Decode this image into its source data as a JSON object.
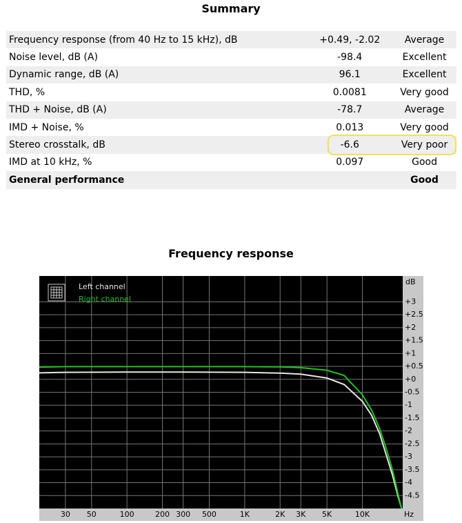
{
  "summary": {
    "title": "Summary",
    "highlight_row": 6,
    "rows": [
      [
        "Frequency response (from 40 Hz to 15 kHz), dB",
        "+0.49, -2.02",
        "Average"
      ],
      [
        "Noise level, dB (A)",
        "-98.4",
        "Excellent"
      ],
      [
        "Dynamic range, dB (A)",
        "96.1",
        "Excellent"
      ],
      [
        "THD, %",
        "0.0081",
        "Very good"
      ],
      [
        "THD + Noise, dB (A)",
        "-78.7",
        "Average"
      ],
      [
        "IMD + Noise, %",
        "0.013",
        "Very good"
      ],
      [
        "Stereo crosstalk, dB",
        "-6.6",
        "Very poor"
      ],
      [
        "IMD at 10 kHz, %",
        "0.097",
        "Good"
      ],
      [
        "General performance",
        "",
        "Good"
      ]
    ]
  },
  "chart_data": {
    "type": "line",
    "title": "Frequency response",
    "y_label": "dB",
    "x_label": "Hz",
    "log_x": true,
    "grid": true,
    "x": [
      18,
      30,
      100,
      300,
      1000,
      2000,
      3000,
      5000,
      7000,
      10000,
      12000,
      14000,
      16000,
      18000,
      20000,
      21500
    ],
    "series": [
      {
        "name": "Left channel",
        "color": "#e6e6e6",
        "values": [
          0.25,
          0.27,
          0.28,
          0.28,
          0.27,
          0.24,
          0.2,
          0.05,
          -0.2,
          -0.85,
          -1.4,
          -2.1,
          -2.95,
          -3.7,
          -4.5,
          -5.0
        ]
      },
      {
        "name": "Right channel",
        "color": "#1fc21f",
        "values": [
          0.47,
          0.49,
          0.49,
          0.49,
          0.49,
          0.48,
          0.45,
          0.35,
          0.15,
          -0.6,
          -1.2,
          -1.9,
          -2.7,
          -3.5,
          -4.4,
          -5.0
        ]
      }
    ],
    "xlim": [
      18,
      22000
    ],
    "xticks": [
      30,
      50,
      100,
      200,
      300,
      500,
      {
        "value": 1000,
        "label": "1K"
      },
      {
        "value": 2000,
        "label": "2K"
      },
      {
        "value": 3000,
        "label": "3K"
      },
      {
        "value": 5000,
        "label": "5K"
      },
      {
        "value": 10000,
        "label": "10K"
      }
    ],
    "ylim": [
      -5,
      4
    ],
    "yticks": [
      {
        "value": 3,
        "label": "+3"
      },
      {
        "value": 2.5,
        "label": "+2.5"
      },
      {
        "value": 2,
        "label": "+2"
      },
      {
        "value": 1.5,
        "label": "+1.5"
      },
      {
        "value": 1,
        "label": "+1"
      },
      {
        "value": 0.5,
        "label": "+0.5"
      },
      {
        "value": 0,
        "label": "+0"
      },
      -0.5,
      -1,
      -1.5,
      -2,
      -2.5,
      -3,
      -3.5,
      -4,
      -4.5
    ]
  }
}
